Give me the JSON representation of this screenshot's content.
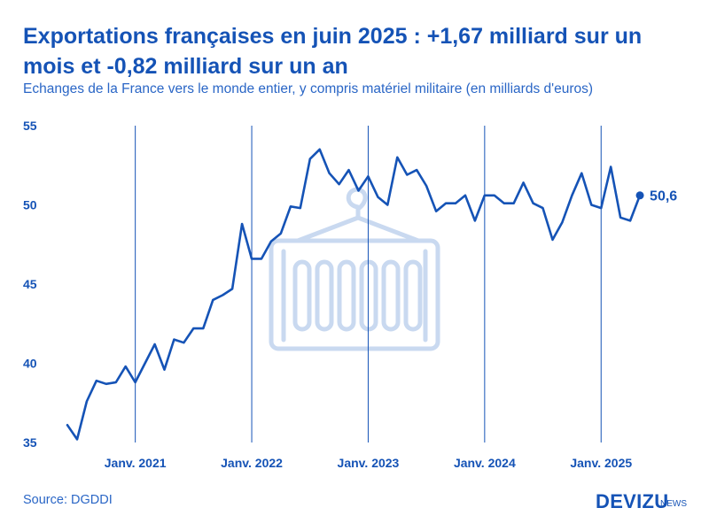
{
  "header": {
    "title": "Exportations françaises en juin 2025 : +1,67 milliard sur un mois et -0,82 milliard sur un an",
    "subtitle": "Echanges de la France vers le monde entier, y compris matériel militaire (en milliards d'euros)"
  },
  "footer": {
    "source": "Source: DGDDI",
    "brand": "DEVIZU",
    "brand_suffix": "NEWS"
  },
  "colors": {
    "line": "#1553b6",
    "text": "#1553b6",
    "watermark": "#c9d9f0",
    "gridline": "#1553b6"
  },
  "icons": [
    "container-hanger-watermark-icon"
  ],
  "chart_data": {
    "type": "line",
    "title": "Exportations françaises en juin 2025 : +1,67 milliard sur un mois et -0,82 milliard sur un an",
    "xlabel": "",
    "ylabel": "",
    "ylim": [
      35,
      55
    ],
    "yticks": [
      35,
      40,
      45,
      50,
      55
    ],
    "grid": "vertical lines at each January",
    "x_tick_labels": [
      "Janv. 2021",
      "Janv. 2022",
      "Janv. 2023",
      "Janv. 2024",
      "Janv. 2025"
    ],
    "x_start": "2020-06",
    "x_end": "2025-06",
    "last_value_label": "50,6",
    "series": [
      {
        "values": [
          36.1,
          35.2,
          37.6,
          38.9,
          38.7,
          38.8,
          39.8,
          38.8,
          40.0,
          41.2,
          39.6,
          41.5,
          41.3,
          42.2,
          42.2,
          44.0,
          44.3,
          44.7,
          48.8,
          46.6,
          46.6,
          47.7,
          48.2,
          49.9,
          49.8,
          52.9,
          53.5,
          52.0,
          51.3,
          52.2,
          50.9,
          51.8,
          50.5,
          50.0,
          53.0,
          51.9,
          52.2,
          51.2,
          49.6,
          50.1,
          50.1,
          50.6,
          49.0,
          50.6,
          50.6,
          50.1,
          50.1,
          51.4,
          50.1,
          49.8,
          47.8,
          48.9,
          50.6,
          52.0,
          50.0,
          49.8,
          52.4,
          49.2,
          49.0,
          50.6
        ]
      }
    ]
  }
}
